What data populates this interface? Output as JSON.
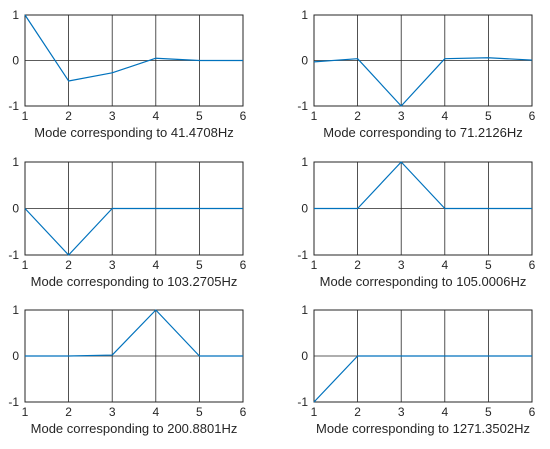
{
  "line_color": "#0072BD",
  "chart_data": [
    {
      "type": "line",
      "x": [
        1,
        2,
        3,
        4,
        5,
        6
      ],
      "series": [
        {
          "values": [
            1.0,
            -0.45,
            -0.27,
            0.05,
            0.0,
            0.0
          ]
        }
      ],
      "xlabel": "Mode corresponding to 41.4708Hz",
      "xlim": [
        1,
        6
      ],
      "ylim": [
        -1,
        1
      ],
      "xticks": [
        "1",
        "2",
        "3",
        "4",
        "5",
        "6"
      ],
      "yticks": [
        "-1",
        "0",
        "1"
      ],
      "grid": true
    },
    {
      "type": "line",
      "x": [
        1,
        2,
        3,
        4,
        5,
        6
      ],
      "series": [
        {
          "values": [
            -0.03,
            0.04,
            -1.0,
            0.04,
            0.06,
            0.01
          ]
        }
      ],
      "xlabel": "Mode corresponding to 71.2126Hz",
      "xlim": [
        1,
        6
      ],
      "ylim": [
        -1,
        1
      ],
      "xticks": [
        "1",
        "2",
        "3",
        "4",
        "5",
        "6"
      ],
      "yticks": [
        "-1",
        "0",
        "1"
      ],
      "grid": true
    },
    {
      "type": "line",
      "x": [
        1,
        2,
        3,
        4,
        5,
        6
      ],
      "series": [
        {
          "values": [
            0.0,
            -1.0,
            0.0,
            0.0,
            0.0,
            0.0
          ]
        }
      ],
      "xlabel": "Mode corresponding to 103.2705Hz",
      "xlim": [
        1,
        6
      ],
      "ylim": [
        -1,
        1
      ],
      "xticks": [
        "1",
        "2",
        "3",
        "4",
        "5",
        "6"
      ],
      "yticks": [
        "-1",
        "0",
        "1"
      ],
      "grid": true
    },
    {
      "type": "line",
      "x": [
        1,
        2,
        3,
        4,
        5,
        6
      ],
      "series": [
        {
          "values": [
            0.0,
            0.0,
            1.0,
            0.0,
            0.0,
            0.0
          ]
        }
      ],
      "xlabel": "Mode corresponding to 105.0006Hz",
      "xlim": [
        1,
        6
      ],
      "ylim": [
        -1,
        1
      ],
      "xticks": [
        "1",
        "2",
        "3",
        "4",
        "5",
        "6"
      ],
      "yticks": [
        "-1",
        "0",
        "1"
      ],
      "grid": true
    },
    {
      "type": "line",
      "x": [
        1,
        2,
        3,
        4,
        5,
        6
      ],
      "series": [
        {
          "values": [
            0.0,
            0.0,
            0.02,
            1.0,
            0.0,
            0.0
          ]
        }
      ],
      "xlabel": "Mode corresponding to 200.8801Hz",
      "xlim": [
        1,
        6
      ],
      "ylim": [
        -1,
        1
      ],
      "xticks": [
        "1",
        "2",
        "3",
        "4",
        "5",
        "6"
      ],
      "yticks": [
        "-1",
        "0",
        "1"
      ],
      "grid": true
    },
    {
      "type": "line",
      "x": [
        1,
        2,
        3,
        4,
        5,
        6
      ],
      "series": [
        {
          "values": [
            -1.0,
            0.0,
            0.0,
            0.0,
            0.0,
            0.0
          ]
        }
      ],
      "xlabel": "Mode corresponding to 1271.3502Hz",
      "xlim": [
        1,
        6
      ],
      "ylim": [
        -1,
        1
      ],
      "xticks": [
        "1",
        "2",
        "3",
        "4",
        "5",
        "6"
      ],
      "yticks": [
        "-1",
        "0",
        "1"
      ],
      "grid": true
    }
  ]
}
